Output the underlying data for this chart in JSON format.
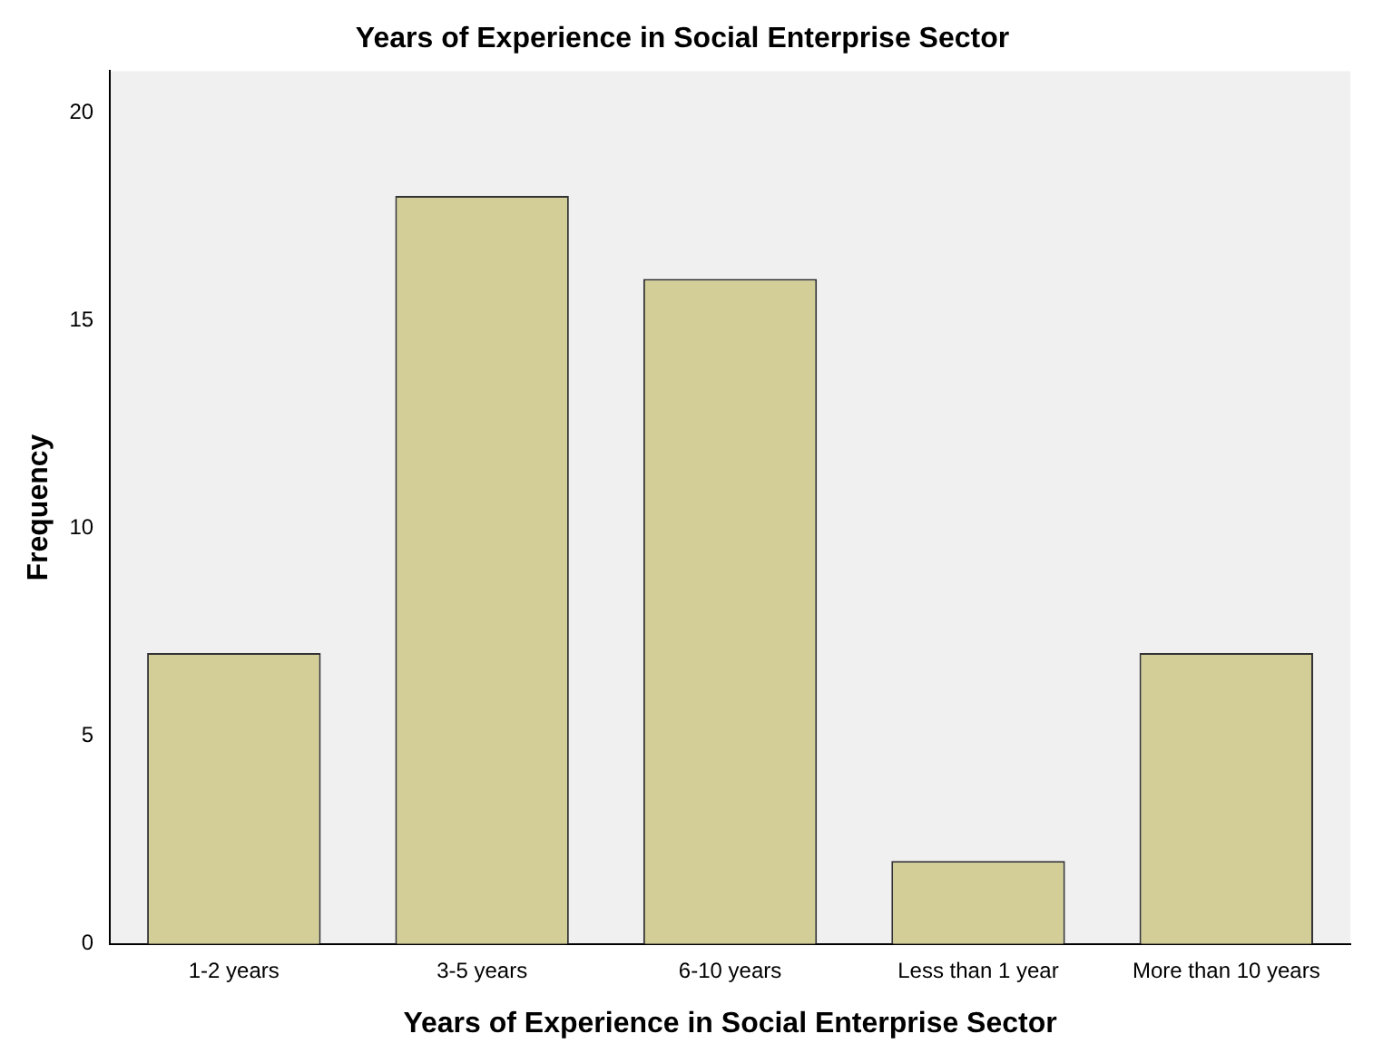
{
  "chart_data": {
    "type": "bar",
    "title": "Years of Experience in Social Enterprise Sector",
    "xlabel": "Years of Experience in Social Enterprise Sector",
    "ylabel": "Frequency",
    "categories": [
      "1-2 years",
      "3-5 years",
      "6-10 years",
      "Less than 1 year",
      "More than 10 years"
    ],
    "values": [
      7,
      18,
      16,
      2,
      7
    ],
    "color": "#d3ce97",
    "ylim": [
      0,
      21
    ],
    "yticks": [
      0,
      5,
      10,
      15,
      20
    ],
    "grid": false,
    "legend": false
  }
}
